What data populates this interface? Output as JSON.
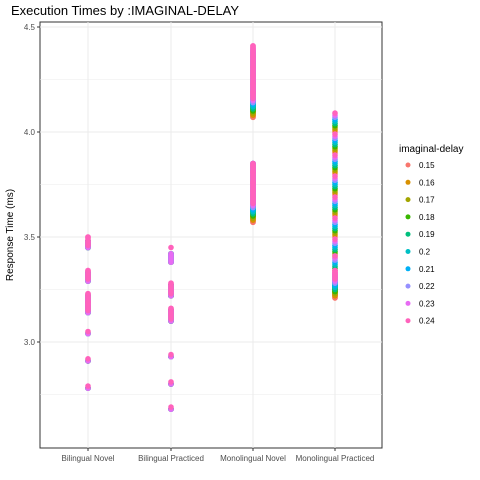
{
  "chart_data": {
    "type": "scatter",
    "title": "Execution Times by :IMAGINAL-DELAY",
    "xlabel": "",
    "ylabel": "Response Time (ms)",
    "ylim": [
      2.6,
      4.5
    ],
    "yticks": [
      3.0,
      3.5,
      4.0,
      4.5
    ],
    "ytick_labels": [
      "3.0",
      "3.5",
      "4.0",
      "4.5"
    ],
    "grid": true,
    "legend": {
      "title": "imaginal-delay",
      "placement": "right"
    },
    "categories": [
      "Bilingual Novel",
      "Bilingual Practiced",
      "Monolingual Novel",
      "Monolingual Practiced"
    ],
    "series": [
      {
        "name": "0.15",
        "color": "#F8766D",
        "values": [
          [
            2.78,
            2.91,
            3.04,
            3.14,
            3.18,
            3.22,
            3.29,
            3.33,
            3.45,
            3.48
          ],
          [
            2.68,
            2.8,
            2.93,
            3.1,
            3.15,
            3.22,
            3.27,
            3.38,
            3.42
          ],
          [
            3.57,
            3.6,
            3.63,
            3.67,
            3.72,
            3.76,
            3.79,
            4.07,
            4.1,
            4.14,
            4.18,
            4.22,
            4.27,
            4.32
          ],
          [
            3.21,
            3.25,
            3.32,
            3.4,
            3.5,
            3.6,
            3.7,
            3.8,
            3.9,
            4.0
          ]
        ]
      },
      {
        "name": "0.16",
        "color": "#D89000",
        "values": [
          [
            2.78,
            2.91,
            3.04,
            3.14,
            3.18,
            3.22,
            3.29,
            3.33,
            3.45,
            3.48
          ],
          [
            2.68,
            2.8,
            2.93,
            3.1,
            3.15,
            3.22,
            3.27,
            3.38,
            3.42
          ],
          [
            3.58,
            3.61,
            3.64,
            3.68,
            3.73,
            3.77,
            3.8,
            4.08,
            4.11,
            4.15,
            4.19,
            4.23,
            4.28,
            4.33
          ],
          [
            3.22,
            3.26,
            3.33,
            3.41,
            3.51,
            3.61,
            3.71,
            3.81,
            3.91,
            4.01
          ]
        ]
      },
      {
        "name": "0.17",
        "color": "#A3A500",
        "values": [
          [
            2.78,
            2.91,
            3.04,
            3.14,
            3.18,
            3.22,
            3.29,
            3.33,
            3.45,
            3.48
          ],
          [
            2.68,
            2.8,
            2.93,
            3.1,
            3.15,
            3.22,
            3.27,
            3.38,
            3.42
          ],
          [
            3.59,
            3.62,
            3.65,
            3.69,
            3.74,
            3.78,
            3.81,
            4.09,
            4.12,
            4.16,
            4.2,
            4.24,
            4.29,
            4.34
          ],
          [
            3.23,
            3.27,
            3.34,
            3.42,
            3.52,
            3.62,
            3.72,
            3.82,
            3.92,
            4.02
          ]
        ]
      },
      {
        "name": "0.18",
        "color": "#39B600",
        "values": [
          [
            2.78,
            2.91,
            3.04,
            3.14,
            3.18,
            3.22,
            3.29,
            3.33,
            3.45,
            3.48
          ],
          [
            2.68,
            2.8,
            2.93,
            3.1,
            3.15,
            3.22,
            3.27,
            3.38,
            3.42
          ],
          [
            3.6,
            3.63,
            3.66,
            3.7,
            3.75,
            3.79,
            3.82,
            4.1,
            4.13,
            4.17,
            4.21,
            4.25,
            4.3,
            4.35
          ],
          [
            3.24,
            3.28,
            3.35,
            3.43,
            3.53,
            3.63,
            3.73,
            3.83,
            3.93,
            4.03
          ]
        ]
      },
      {
        "name": "0.19",
        "color": "#00BF7D",
        "values": [
          [
            2.78,
            2.91,
            3.04,
            3.14,
            3.18,
            3.22,
            3.29,
            3.33,
            3.45,
            3.48
          ],
          [
            2.68,
            2.8,
            2.93,
            3.1,
            3.15,
            3.22,
            3.27,
            3.38,
            3.42
          ],
          [
            3.61,
            3.64,
            3.67,
            3.71,
            3.76,
            3.8,
            3.83,
            4.11,
            4.14,
            4.18,
            4.22,
            4.26,
            4.31,
            4.36
          ],
          [
            3.25,
            3.29,
            3.36,
            3.44,
            3.54,
            3.64,
            3.74,
            3.84,
            3.94,
            4.04
          ]
        ]
      },
      {
        "name": "0.2",
        "color": "#00BFC4",
        "values": [
          [
            2.78,
            2.91,
            3.04,
            3.14,
            3.18,
            3.22,
            3.29,
            3.33,
            3.45,
            3.48
          ],
          [
            2.68,
            2.8,
            2.93,
            3.1,
            3.15,
            3.22,
            3.27,
            3.38,
            3.42
          ],
          [
            3.62,
            3.65,
            3.68,
            3.72,
            3.77,
            3.81,
            3.84,
            4.12,
            4.15,
            4.19,
            4.23,
            4.27,
            4.32,
            4.37
          ],
          [
            3.26,
            3.3,
            3.37,
            3.45,
            3.55,
            3.65,
            3.75,
            3.85,
            3.95,
            4.05
          ]
        ]
      },
      {
        "name": "0.21",
        "color": "#00B0F6",
        "values": [
          [
            2.78,
            2.91,
            3.04,
            3.14,
            3.18,
            3.22,
            3.29,
            3.33,
            3.45,
            3.48
          ],
          [
            2.68,
            2.8,
            2.93,
            3.1,
            3.15,
            3.22,
            3.27,
            3.38,
            3.42
          ],
          [
            3.63,
            3.66,
            3.69,
            3.73,
            3.78,
            3.82,
            3.85,
            4.13,
            4.16,
            4.2,
            4.24,
            4.28,
            4.33,
            4.38
          ],
          [
            3.27,
            3.31,
            3.38,
            3.46,
            3.56,
            3.66,
            3.76,
            3.86,
            3.96,
            4.06
          ]
        ]
      },
      {
        "name": "0.22",
        "color": "#9590FF",
        "values": [
          [
            2.78,
            2.91,
            3.04,
            3.14,
            3.18,
            3.22,
            3.29,
            3.33,
            3.45,
            3.48
          ],
          [
            2.68,
            2.8,
            2.93,
            3.1,
            3.15,
            3.22,
            3.27,
            3.38,
            3.42
          ],
          [
            3.64,
            3.67,
            3.7,
            3.74,
            3.79,
            3.83,
            3.85,
            4.14,
            4.17,
            4.21,
            4.25,
            4.29,
            4.34,
            4.39
          ],
          [
            3.28,
            3.32,
            3.39,
            3.47,
            3.57,
            3.67,
            3.77,
            3.87,
            3.97,
            4.07
          ]
        ]
      },
      {
        "name": "0.23",
        "color": "#E76BF3",
        "values": [
          [
            2.78,
            2.91,
            3.04,
            3.14,
            3.18,
            3.22,
            3.29,
            3.33,
            3.45,
            3.48
          ],
          [
            2.68,
            2.8,
            2.93,
            3.1,
            3.15,
            3.22,
            3.27,
            3.38,
            3.42
          ],
          [
            3.65,
            3.68,
            3.71,
            3.75,
            3.8,
            3.84,
            3.85,
            4.15,
            4.18,
            4.22,
            4.26,
            4.3,
            4.35,
            4.4
          ],
          [
            3.29,
            3.33,
            3.4,
            3.48,
            3.58,
            3.68,
            3.78,
            3.88,
            3.98,
            4.08
          ]
        ]
      },
      {
        "name": "0.24",
        "color": "#FF62BC",
        "values": [
          [
            2.79,
            2.92,
            3.05,
            3.15,
            3.19,
            3.23,
            3.3,
            3.34,
            3.46,
            3.5
          ],
          [
            2.69,
            2.81,
            2.94,
            3.11,
            3.16,
            3.23,
            3.28,
            3.39,
            3.45
          ],
          [
            3.66,
            3.69,
            3.72,
            3.76,
            3.81,
            3.84,
            3.85,
            4.16,
            4.19,
            4.23,
            4.27,
            4.31,
            4.36,
            4.41
          ],
          [
            3.3,
            3.34,
            3.41,
            3.49,
            3.59,
            3.69,
            3.79,
            3.89,
            3.99,
            4.09
          ]
        ]
      }
    ]
  }
}
